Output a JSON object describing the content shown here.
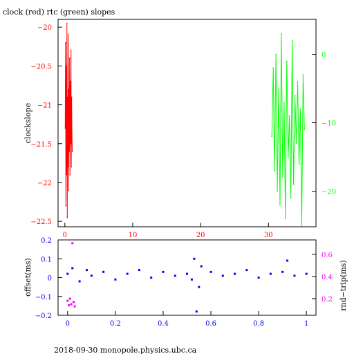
{
  "page": {
    "title": "clock (red) rtc (green) slopes",
    "footer": "2018-09-30  monopole.physics.ubc.ca"
  },
  "colors": {
    "clock": "#ff0000",
    "rtc": "#00ff00",
    "offset": "#0000ff",
    "rndtrip": "#ff00ff",
    "axis": "#000000"
  },
  "chart_data": [
    {
      "type": "line",
      "title": "clock (red) rtc (green) slopes",
      "xlabel": "",
      "ylabel": "clockslope",
      "xlim": [
        -1,
        37
      ],
      "ylim": [
        -22.57,
        -19.9
      ],
      "xticks": [
        0,
        10,
        20,
        30
      ],
      "yticks": [
        -20,
        -20.5,
        -21,
        -21.5,
        -22,
        -22.5
      ],
      "ytick_labels": [
        "−20",
        "−20.5",
        "−21",
        "−21.5",
        "−22",
        "−22.5"
      ],
      "y2label": "",
      "y2lim": [
        -25.2,
        5.1
      ],
      "y2ticks": [
        0,
        -10,
        -20
      ],
      "y2tick_labels": [
        "0",
        "−10",
        "−20"
      ],
      "series": [
        {
          "color": "#ff0000",
          "axis": "left",
          "x": [
            0.05,
            0.1,
            0.15,
            0.2,
            0.25,
            0.3,
            0.35,
            0.4,
            0.45,
            0.5,
            0.55,
            0.6,
            0.65,
            0.7,
            0.75,
            0.8,
            0.85,
            0.9,
            0.95,
            1.0,
            1.05,
            1.1
          ],
          "y": [
            -21.3,
            -20.2,
            -22.3,
            -20.5,
            -21.9,
            -19.95,
            -22.45,
            -20.9,
            -21.8,
            -20.1,
            -22.1,
            -20.8,
            -21.6,
            -20.4,
            -21.9,
            -20.7,
            -21.5,
            -20.3,
            -21.8,
            -20.9,
            -21.4,
            -21.6
          ]
        },
        {
          "color": "#00ff00",
          "axis": "right",
          "x": [
            30.5,
            30.7,
            30.9,
            31.1,
            31.3,
            31.5,
            31.7,
            31.9,
            32.1,
            32.3,
            32.5,
            32.7,
            32.9,
            33.1,
            33.3,
            33.5,
            33.7,
            33.9,
            34.1,
            34.3,
            34.5,
            34.7,
            34.9,
            35.1,
            35.3
          ],
          "y": [
            -12,
            -2,
            -17,
            0,
            -20,
            -5,
            -22,
            3,
            -18,
            -7,
            -24,
            -1,
            -15,
            -9,
            -21,
            2,
            -19,
            -6,
            -13,
            -4,
            -16,
            -8,
            -25,
            -3,
            -11
          ]
        }
      ]
    },
    {
      "type": "scatter",
      "xlabel": "",
      "ylabel": "offset(ms)",
      "xlim": [
        -0.04,
        1.04
      ],
      "ylim": [
        -0.2,
        0.2
      ],
      "xticks": [
        0,
        0.2,
        0.4,
        0.6,
        0.8,
        1
      ],
      "xtick_labels": [
        "0",
        "0.2",
        "0.4",
        "0.6",
        "0.8",
        "1"
      ],
      "yticks": [
        0.2,
        0.1,
        0,
        -0.1,
        -0.2
      ],
      "ytick_labels": [
        "0.2",
        "0.1",
        "0",
        "−0.1",
        "−0.2"
      ],
      "y2label": "rnd−trip(ms)",
      "y2lim": [
        0.05,
        0.73
      ],
      "y2ticks": [
        0.6,
        0.4,
        0.2
      ],
      "y2tick_labels": [
        "0.6",
        "0.4",
        "0.2"
      ],
      "series": [
        {
          "color": "#0000ff",
          "axis": "left",
          "x": [
            0,
            0.02,
            0.05,
            0.08,
            0.1,
            0.15,
            0.2,
            0.25,
            0.3,
            0.35,
            0.4,
            0.45,
            0.5,
            0.52,
            0.53,
            0.54,
            0.55,
            0.56,
            0.6,
            0.65,
            0.7,
            0.75,
            0.8,
            0.85,
            0.9,
            0.92,
            0.95,
            1.0
          ],
          "y": [
            0.02,
            0.05,
            -0.02,
            0.04,
            0.01,
            0.03,
            -0.01,
            0.02,
            0.04,
            0.0,
            0.03,
            0.01,
            0.02,
            -0.01,
            0.1,
            -0.18,
            -0.05,
            0.06,
            0.03,
            0.01,
            0.02,
            0.04,
            0.0,
            0.02,
            0.03,
            0.09,
            0.01,
            0.02
          ]
        },
        {
          "color": "#ff00ff",
          "axis": "right",
          "x": [
            0.0,
            0.005,
            0.01,
            0.015,
            0.02,
            0.025,
            0.03
          ],
          "y": [
            0.18,
            0.14,
            0.2,
            0.15,
            0.7,
            0.17,
            0.13
          ]
        }
      ]
    }
  ]
}
